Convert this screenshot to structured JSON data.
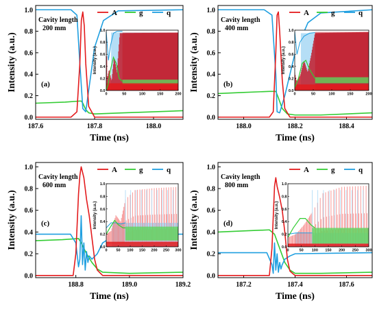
{
  "colors": {
    "A": "#e31a1c",
    "g": "#33cc33",
    "q": "#1f9fe0",
    "A_fill": "#c21b2a",
    "A_fill_light": "#f47a7a",
    "q_fill": "#a8d8f5",
    "g_fill": "#5cd65c"
  },
  "legend": [
    "A",
    "g",
    "q"
  ],
  "chart_data": [
    {
      "type": "line",
      "panel_label": "(a)",
      "annotation": [
        "Cavity length",
        "200 mm"
      ],
      "xlabel": "Time (ns)",
      "ylabel": "Intensity (a.u.)",
      "xlim": [
        187.6,
        188.1
      ],
      "ylim": [
        -0.02,
        1.04
      ],
      "xticks": [
        "187.6",
        "187.8",
        "188.0"
      ],
      "xtick_values": [
        187.6,
        187.8,
        188.0
      ],
      "yticks": [
        "0.0",
        "0.2",
        "0.4",
        "0.6",
        "0.8",
        "1.0"
      ],
      "series": [
        {
          "name": "A",
          "x": [
            187.6,
            187.72,
            187.74,
            187.75,
            187.755,
            187.76,
            187.765,
            187.77,
            187.78,
            187.8,
            188.1
          ],
          "y": [
            0.0,
            0.0,
            0.05,
            0.5,
            0.9,
            0.98,
            0.85,
            0.5,
            0.1,
            0.0,
            0.0
          ]
        },
        {
          "name": "g",
          "x": [
            187.6,
            187.7,
            187.75,
            187.755,
            187.76,
            187.77,
            187.78,
            187.8,
            187.9,
            188.0,
            188.1
          ],
          "y": [
            0.13,
            0.14,
            0.15,
            0.15,
            0.13,
            0.07,
            0.04,
            0.03,
            0.04,
            0.05,
            0.06
          ]
        },
        {
          "name": "q",
          "x": [
            187.6,
            187.72,
            187.74,
            187.75,
            187.76,
            187.77,
            187.78,
            187.8,
            187.83,
            187.88,
            188.1
          ],
          "y": [
            1.0,
            1.0,
            0.95,
            0.5,
            0.08,
            0.05,
            0.25,
            0.65,
            0.9,
            0.99,
            1.0
          ]
        }
      ],
      "inset": {
        "xlabel": "",
        "ylabel": "Intensity (a.u.)",
        "xlim": [
          0,
          200
        ],
        "ylim": [
          0,
          1.0
        ],
        "xticks": [
          "0",
          "50",
          "100",
          "150",
          "200"
        ],
        "yticks": [
          "0.0",
          "0.2",
          "0.4",
          "0.6",
          "0.8",
          "1.0"
        ],
        "transient_end": 45,
        "A_envelope": [
          [
            0,
            0.9
          ],
          [
            3,
            0.2
          ],
          [
            8,
            0.35
          ],
          [
            15,
            0.15
          ],
          [
            22,
            0.55
          ],
          [
            30,
            0.3
          ],
          [
            38,
            0.95
          ],
          [
            200,
            0.96
          ]
        ],
        "A_floor": 0.0,
        "A_base": 0.12,
        "g_band": [
          0.1,
          0.18
        ],
        "q_fill_top": 0.96,
        "g_line": [
          [
            0,
            0.0
          ],
          [
            5,
            0.1
          ],
          [
            12,
            0.35
          ],
          [
            20,
            0.55
          ],
          [
            28,
            0.45
          ],
          [
            36,
            0.2
          ],
          [
            45,
            0.15
          ]
        ],
        "q_line": [
          [
            0,
            0.98
          ],
          [
            6,
            0.5
          ],
          [
            12,
            0.75
          ],
          [
            20,
            0.95
          ],
          [
            30,
            0.98
          ],
          [
            45,
            0.98
          ]
        ]
      }
    },
    {
      "type": "line",
      "panel_label": "(b)",
      "annotation": [
        "Cavity length",
        "400 mm"
      ],
      "xlabel": "Time (ns)",
      "ylabel": "Intensity (a.u.)",
      "xlim": [
        187.9,
        188.5
      ],
      "ylim": [
        -0.02,
        1.04
      ],
      "xticks": [
        "188.0",
        "188.2",
        "188.4"
      ],
      "xtick_values": [
        188.0,
        188.2,
        188.4
      ],
      "yticks": [
        "0.0",
        "0.2",
        "0.4",
        "0.6",
        "0.8",
        "1.0"
      ],
      "series": [
        {
          "name": "A",
          "x": [
            187.9,
            188.1,
            188.115,
            188.125,
            188.13,
            188.135,
            188.14,
            188.15,
            188.16,
            188.18,
            188.5
          ],
          "y": [
            0.0,
            0.0,
            0.05,
            0.6,
            0.95,
            0.98,
            0.8,
            0.35,
            0.08,
            0.0,
            0.0
          ]
        },
        {
          "name": "g",
          "x": [
            187.9,
            188.0,
            188.1,
            188.125,
            188.135,
            188.15,
            188.17,
            188.2,
            188.3,
            188.5
          ],
          "y": [
            0.22,
            0.23,
            0.24,
            0.24,
            0.18,
            0.08,
            0.03,
            0.02,
            0.02,
            0.04
          ]
        },
        {
          "name": "q",
          "x": [
            187.9,
            188.08,
            188.11,
            188.125,
            188.13,
            188.14,
            188.16,
            188.2,
            188.25,
            188.3,
            188.5
          ],
          "y": [
            1.0,
            1.0,
            0.95,
            0.4,
            0.05,
            0.04,
            0.2,
            0.6,
            0.88,
            0.97,
            1.0
          ]
        }
      ],
      "inset": {
        "xlabel": "",
        "ylabel": "Intensity (a.u.)",
        "xlim": [
          0,
          200
        ],
        "ylim": [
          0,
          1.0
        ],
        "xticks": [
          "0",
          "50",
          "100",
          "150",
          "200"
        ],
        "yticks": [
          "0.0",
          "0.2",
          "0.4",
          "0.6",
          "0.8",
          "1.0"
        ],
        "transient_end": 55,
        "A_envelope": [
          [
            0,
            0.3
          ],
          [
            5,
            0.15
          ],
          [
            15,
            0.25
          ],
          [
            25,
            0.5
          ],
          [
            35,
            0.3
          ],
          [
            45,
            0.6
          ],
          [
            55,
            0.95
          ],
          [
            200,
            0.97
          ]
        ],
        "A_floor": 0.0,
        "A_base": 0.1,
        "g_band": [
          0.12,
          0.22
        ],
        "q_fill_top": 0.95,
        "g_line": [
          [
            0,
            0.05
          ],
          [
            10,
            0.2
          ],
          [
            20,
            0.45
          ],
          [
            30,
            0.5
          ],
          [
            40,
            0.35
          ],
          [
            55,
            0.2
          ]
        ],
        "q_line": [
          [
            0,
            0.98
          ],
          [
            6,
            0.6
          ],
          [
            14,
            0.8
          ],
          [
            25,
            0.9
          ],
          [
            40,
            0.95
          ],
          [
            55,
            0.96
          ]
        ]
      }
    },
    {
      "type": "line",
      "panel_label": "(c)",
      "annotation": [
        "Cavity length",
        "600 mm"
      ],
      "xlabel": "Time (ns)",
      "ylabel": "Intensity (a.u.)",
      "xlim": [
        188.65,
        189.2
      ],
      "ylim": [
        -0.02,
        1.04
      ],
      "xticks": [
        "188.8",
        "189.0",
        "189.2"
      ],
      "xtick_values": [
        188.8,
        189.0,
        189.2
      ],
      "yticks": [
        "0.0",
        "0.2",
        "0.4",
        "0.6",
        "0.8",
        "1.0"
      ],
      "series": [
        {
          "name": "A",
          "x": [
            188.65,
            188.79,
            188.8,
            188.81,
            188.815,
            188.82,
            188.83,
            188.84,
            188.85,
            188.86,
            188.87,
            188.88,
            188.9,
            189.2
          ],
          "y": [
            0.0,
            0.0,
            0.2,
            0.75,
            0.92,
            1.0,
            0.9,
            0.7,
            0.55,
            0.35,
            0.15,
            0.05,
            0.0,
            0.0
          ]
        },
        {
          "name": "g",
          "x": [
            188.65,
            188.75,
            188.81,
            188.82,
            188.84,
            188.86,
            188.88,
            188.9,
            189.0,
            189.2
          ],
          "y": [
            0.32,
            0.33,
            0.34,
            0.3,
            0.2,
            0.12,
            0.06,
            0.03,
            0.02,
            0.03
          ]
        },
        {
          "name": "q",
          "x": [
            188.65,
            188.78,
            188.8,
            188.81,
            188.815,
            188.82,
            188.825,
            188.83,
            188.835,
            188.84,
            188.845,
            188.85,
            188.86,
            188.88,
            188.9,
            188.95,
            189.0,
            189.2
          ],
          "y": [
            0.38,
            0.38,
            0.3,
            0.08,
            0.15,
            0.55,
            0.1,
            0.3,
            0.05,
            0.22,
            0.12,
            0.18,
            0.15,
            0.2,
            0.3,
            0.38,
            0.38,
            0.38
          ]
        }
      ],
      "inset": {
        "xlabel": "",
        "ylabel": "Intensity (a.u.)",
        "xlim": [
          0,
          300
        ],
        "ylim": [
          0,
          1.0
        ],
        "xticks": [
          "0",
          "50",
          "100",
          "150",
          "200",
          "250",
          "300"
        ],
        "yticks": [
          "0.0",
          "0.2",
          "0.4",
          "0.6",
          "0.8",
          "1.0"
        ],
        "transient_end": 80,
        "A_envelope": [
          [
            0,
            0.2
          ],
          [
            20,
            0.25
          ],
          [
            40,
            0.5
          ],
          [
            60,
            0.4
          ],
          [
            80,
            0.75
          ],
          [
            120,
            0.9
          ],
          [
            200,
            0.93
          ],
          [
            300,
            0.95
          ]
        ],
        "A_floor": 0.05,
        "A_base": 0.08,
        "g_band": [
          0.1,
          0.32
        ],
        "q_fill_top": 0.38,
        "g_line": [
          [
            0,
            0.2
          ],
          [
            15,
            0.3
          ],
          [
            35,
            0.42
          ],
          [
            50,
            0.35
          ],
          [
            70,
            0.3
          ],
          [
            80,
            0.3
          ]
        ],
        "q_line": [
          [
            0,
            0.3
          ],
          [
            20,
            0.38
          ],
          [
            40,
            0.38
          ],
          [
            60,
            0.36
          ],
          [
            80,
            0.38
          ]
        ]
      }
    },
    {
      "type": "line",
      "panel_label": "(d)",
      "annotation": [
        "Cavity length",
        "800 mm"
      ],
      "xlabel": "Time (ns)",
      "ylabel": "Intensity (a.u.)",
      "xlim": [
        187.1,
        187.7
      ],
      "ylim": [
        -0.02,
        1.04
      ],
      "xticks": [
        "187.2",
        "187.4",
        "187.6"
      ],
      "xtick_values": [
        187.2,
        187.4,
        187.6
      ],
      "yticks": [
        "0.0",
        "0.2",
        "0.4",
        "0.6",
        "0.8",
        "1.0"
      ],
      "series": [
        {
          "name": "A",
          "x": [
            187.1,
            187.3,
            187.31,
            187.32,
            187.325,
            187.33,
            187.34,
            187.35,
            187.36,
            187.37,
            187.38,
            187.4,
            187.7
          ],
          "y": [
            0.0,
            0.0,
            0.25,
            0.82,
            0.9,
            0.82,
            0.72,
            0.6,
            0.4,
            0.15,
            0.04,
            0.0,
            0.0
          ]
        },
        {
          "name": "g",
          "x": [
            187.1,
            187.2,
            187.3,
            187.32,
            187.34,
            187.36,
            187.38,
            187.4,
            187.5,
            187.7
          ],
          "y": [
            0.4,
            0.41,
            0.42,
            0.38,
            0.25,
            0.12,
            0.05,
            0.02,
            0.02,
            0.03
          ]
        },
        {
          "name": "q",
          "x": [
            187.1,
            187.29,
            187.31,
            187.315,
            187.32,
            187.325,
            187.33,
            187.335,
            187.34,
            187.345,
            187.35,
            187.36,
            187.38,
            187.4,
            187.7
          ],
          "y": [
            0.21,
            0.21,
            0.1,
            0.02,
            0.3,
            0.05,
            0.2,
            0.03,
            0.12,
            0.06,
            0.1,
            0.15,
            0.18,
            0.2,
            0.21
          ]
        }
      ],
      "inset": {
        "xlabel": "",
        "ylabel": "Intensity (a.u.)",
        "xlim": [
          0,
          300
        ],
        "ylim": [
          0,
          1.0
        ],
        "xticks": [
          "0",
          "50",
          "100",
          "150",
          "200",
          "250",
          "300"
        ],
        "yticks": [
          "0.0",
          "0.2",
          "0.4",
          "0.6",
          "0.8",
          "1.0"
        ],
        "transient_end": 90,
        "A_envelope": [
          [
            0,
            0.15
          ],
          [
            30,
            0.2
          ],
          [
            60,
            0.35
          ],
          [
            90,
            0.55
          ],
          [
            130,
            0.85
          ],
          [
            200,
            0.95
          ],
          [
            300,
            0.97
          ]
        ],
        "A_floor": 0.02,
        "A_base": 0.05,
        "g_band": [
          0.05,
          0.3
        ],
        "q_fill_top": 0.22,
        "g_line": [
          [
            0,
            0.15
          ],
          [
            20,
            0.3
          ],
          [
            45,
            0.45
          ],
          [
            65,
            0.45
          ],
          [
            85,
            0.35
          ],
          [
            100,
            0.3
          ]
        ],
        "q_line": [
          [
            0,
            0.2
          ],
          [
            30,
            0.22
          ],
          [
            60,
            0.22
          ],
          [
            90,
            0.22
          ]
        ]
      }
    }
  ]
}
